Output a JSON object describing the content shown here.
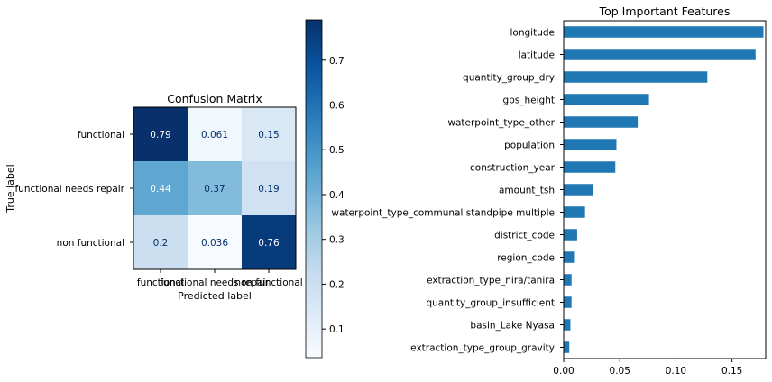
{
  "chart_data": [
    {
      "type": "heatmap",
      "title": "Confusion Matrix",
      "xlabel": "Predicted label",
      "ylabel": "True label",
      "x_ticklabels": [
        "functional",
        "functional needs repair",
        "non functional"
      ],
      "y_ticklabels": [
        "functional",
        "functional needs repair",
        "non functional"
      ],
      "cells": [
        [
          0.79,
          0.061,
          0.15
        ],
        [
          0.44,
          0.37,
          0.19
        ],
        [
          0.2,
          0.036,
          0.76
        ]
      ],
      "cell_labels": [
        [
          "0.79",
          "0.061",
          "0.15"
        ],
        [
          "0.44",
          "0.37",
          "0.19"
        ],
        [
          "0.2",
          "0.036",
          "0.76"
        ]
      ],
      "colormap": "Blues",
      "colorbar": {
        "range": [
          0.036,
          0.79
        ],
        "ticks": [
          0.1,
          0.2,
          0.3,
          0.4,
          0.5,
          0.6,
          0.7
        ],
        "tick_labels": [
          "0.1",
          "0.2",
          "0.3",
          "0.4",
          "0.5",
          "0.6",
          "0.7"
        ]
      }
    },
    {
      "type": "bar",
      "orientation": "horizontal",
      "title": "Top Important Features",
      "categories": [
        "longitude",
        "latitude",
        "quantity_group_dry",
        "gps_height",
        "waterpoint_type_other",
        "population",
        "construction_year",
        "amount_tsh",
        "waterpoint_type_communal standpipe multiple",
        "district_code",
        "region_code",
        "extraction_type_nira/tanira",
        "quantity_group_insufficient",
        "basin_Lake Nyasa",
        "extraction_type_group_gravity"
      ],
      "values": [
        0.178,
        0.171,
        0.128,
        0.076,
        0.066,
        0.047,
        0.046,
        0.026,
        0.019,
        0.012,
        0.01,
        0.007,
        0.007,
        0.006,
        0.005
      ],
      "xlim": [
        0,
        0.18
      ],
      "x_ticks": [
        0.0,
        0.05,
        0.1,
        0.15
      ],
      "x_ticklabels": [
        "0.00",
        "0.05",
        "0.10",
        "0.15"
      ],
      "bar_color": "#1f77b4"
    }
  ]
}
